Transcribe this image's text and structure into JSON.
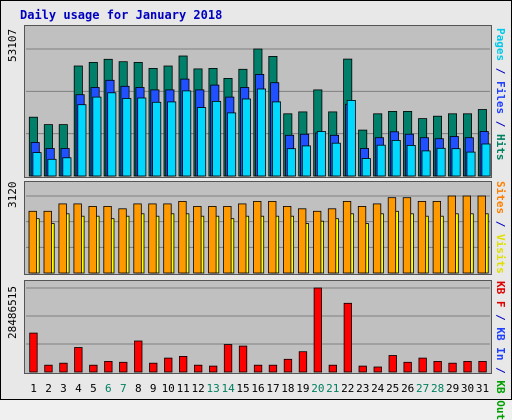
{
  "title": "Daily usage for January 2018",
  "chart_data": [
    {
      "type": "bar",
      "panel": "pages-files-hits",
      "ymax_label": "53107",
      "ylim": [
        0,
        53107
      ],
      "categories": [
        "1",
        "2",
        "3",
        "4",
        "5",
        "6",
        "7",
        "8",
        "9",
        "10",
        "11",
        "12",
        "13",
        "14",
        "15",
        "16",
        "17",
        "18",
        "19",
        "20",
        "21",
        "22",
        "23",
        "24",
        "25",
        "26",
        "27",
        "28",
        "29",
        "30",
        "31"
      ],
      "weekend_days": [
        "6",
        "7",
        "13",
        "14",
        "20",
        "21",
        "27",
        "28"
      ],
      "right_label_parts": [
        {
          "text": "Pages",
          "color": "#00c8e8"
        },
        {
          "text": " / ",
          "color": "#0000c0"
        },
        {
          "text": "Files",
          "color": "#2040ff"
        },
        {
          "text": " / ",
          "color": "#0000c0"
        },
        {
          "text": "Hits",
          "color": "#008060"
        }
      ],
      "series": [
        {
          "name": "Hits",
          "color": "#00806a",
          "values": [
            24600,
            21500,
            21500,
            46000,
            47500,
            48800,
            47800,
            47500,
            45000,
            46000,
            50200,
            44800,
            45000,
            40800,
            44600,
            53107,
            50000,
            26000,
            26800,
            36000,
            26800,
            48900,
            19200,
            26000,
            27000,
            27000,
            24000,
            25000,
            26000,
            26000,
            27800
          ]
        },
        {
          "name": "Files",
          "color": "#2050ff",
          "values": [
            14000,
            11500,
            11500,
            34000,
            37000,
            40000,
            37500,
            37000,
            36000,
            36000,
            40500,
            36000,
            38000,
            33000,
            37000,
            42500,
            39000,
            17000,
            17500,
            18000,
            17000,
            30000,
            11500,
            16000,
            18500,
            17500,
            16000,
            15600,
            16500,
            16000,
            18600
          ]
        },
        {
          "name": "Pages",
          "color": "#00d8ff",
          "values": [
            9800,
            7000,
            7600,
            29800,
            33000,
            34800,
            32400,
            32600,
            30800,
            31000,
            35600,
            28600,
            31200,
            26400,
            32200,
            36400,
            31000,
            11400,
            12600,
            18600,
            13700,
            31600,
            7300,
            12900,
            14900,
            12800,
            10500,
            11600,
            11400,
            10000,
            13400
          ]
        }
      ]
    },
    {
      "type": "bar",
      "panel": "sites-visits",
      "ymax_label": "3120",
      "ylim": [
        0,
        3120
      ],
      "right_label_parts": [
        {
          "text": "Sites",
          "color": "#ff8000"
        },
        {
          "text": " / ",
          "color": "#0000c0"
        },
        {
          "text": "Visits",
          "color": "#e0e000"
        }
      ],
      "series": [
        {
          "name": "Visits",
          "color": "#ffff00",
          "values": [
            2200,
            2000,
            2400,
            2300,
            2300,
            2200,
            2300,
            2400,
            2300,
            2400,
            2400,
            2300,
            2300,
            2200,
            2300,
            2300,
            2300,
            2300,
            2000,
            2100,
            2200,
            2400,
            2000,
            2400,
            2500,
            2400,
            2300,
            2300,
            2400,
            2400,
            2400
          ]
        },
        {
          "name": "Sites",
          "color": "#ff9900",
          "values": [
            2500,
            2500,
            2800,
            2800,
            2700,
            2700,
            2600,
            2800,
            2800,
            2800,
            2900,
            2700,
            2700,
            2700,
            2800,
            2900,
            2900,
            2700,
            2600,
            2500,
            2600,
            2900,
            2700,
            2800,
            3050,
            3050,
            2900,
            2900,
            3120,
            3120,
            3120
          ]
        }
      ]
    },
    {
      "type": "bar",
      "panel": "kb",
      "ymax_label": "28486515",
      "ylim": [
        0,
        28486515
      ],
      "right_label_parts": [
        {
          "text": "KB F",
          "color": "#e00000"
        },
        {
          "text": " / ",
          "color": "#0000c0"
        },
        {
          "text": "KB In",
          "color": "#2040ff"
        },
        {
          "text": " / ",
          "color": "#0000c0"
        },
        {
          "text": "KB Out",
          "color": "#00a000"
        }
      ],
      "series": [
        {
          "name": "KB F",
          "color": "#ff0000",
          "values": [
            13200000,
            2300000,
            3000000,
            8300000,
            2300000,
            3600000,
            3300000,
            10500000,
            3000000,
            4700000,
            5300000,
            2300000,
            2000000,
            9300000,
            8800000,
            2300000,
            2300000,
            4300000,
            6900000,
            28486515,
            2300000,
            23300000,
            2000000,
            1700000,
            5600000,
            3300000,
            4700000,
            3600000,
            3000000,
            3600000,
            3600000
          ]
        }
      ]
    }
  ]
}
